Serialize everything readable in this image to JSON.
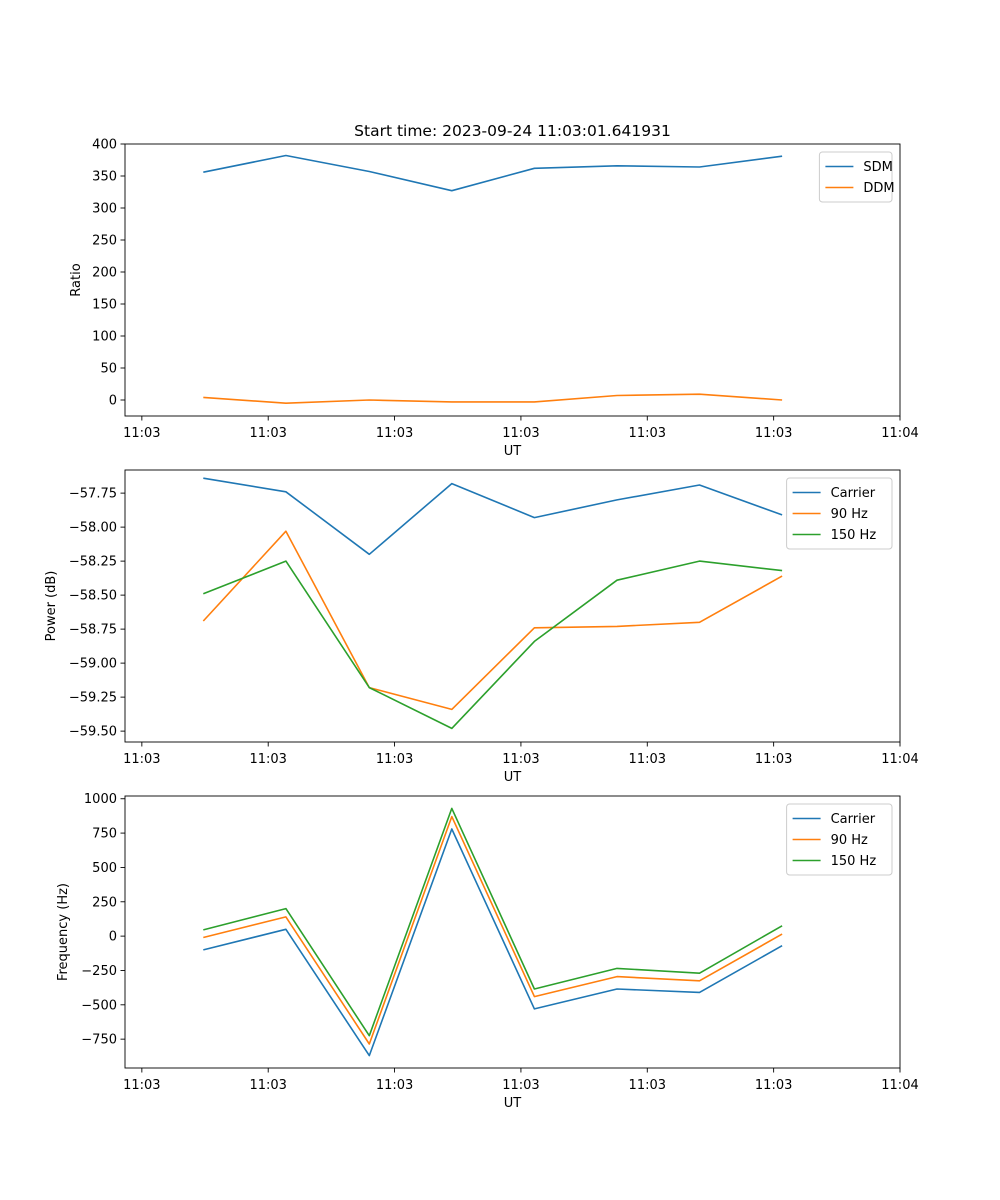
{
  "chart_data": [
    {
      "type": "line",
      "title": "Start time: 2023-09-24 11:03:01.641931",
      "xlabel": "UT",
      "ylabel": "Ratio",
      "xlim": [
        -0.2,
        9.0
      ],
      "xticks": [
        0,
        1.5,
        3,
        4.5,
        6,
        7.5,
        9
      ],
      "xtick_labels": [
        "11:03",
        "11:03",
        "11:03",
        "11:03",
        "11:03",
        "11:03",
        "11:04"
      ],
      "ylim": [
        -25,
        400
      ],
      "yticks": [
        0,
        50,
        100,
        150,
        200,
        250,
        300,
        350,
        400
      ],
      "ytick_labels": [
        "0",
        "50",
        "100",
        "150",
        "200",
        "250",
        "300",
        "350",
        "400"
      ],
      "legend_position": "top-right",
      "x": [
        0.73,
        1.71,
        2.7,
        3.68,
        4.66,
        5.64,
        6.62,
        7.6
      ],
      "series": [
        {
          "name": "SDM",
          "color": "#1f77b4",
          "values": [
            356,
            382,
            357,
            327,
            362,
            366,
            364,
            381
          ]
        },
        {
          "name": "DDM",
          "color": "#ff7f0e",
          "values": [
            4,
            -5,
            0,
            -3,
            -3,
            7,
            9,
            0
          ]
        }
      ]
    },
    {
      "type": "line",
      "title": "",
      "xlabel": "UT",
      "ylabel": "Power (dB)",
      "xlim": [
        -0.2,
        9.0
      ],
      "xticks": [
        0,
        1.5,
        3,
        4.5,
        6,
        7.5,
        9
      ],
      "xtick_labels": [
        "11:03",
        "11:03",
        "11:03",
        "11:03",
        "11:03",
        "11:03",
        "11:04"
      ],
      "ylim": [
        -59.58,
        -57.58
      ],
      "yticks": [
        -59.5,
        -59.25,
        -59.0,
        -58.75,
        -58.5,
        -58.25,
        -58.0,
        -57.75
      ],
      "ytick_labels": [
        "−59.50",
        "−59.25",
        "−59.00",
        "−58.75",
        "−58.50",
        "−58.25",
        "−58.00",
        "−57.75"
      ],
      "legend_position": "top-right",
      "x": [
        0.73,
        1.71,
        2.7,
        3.68,
        4.66,
        5.64,
        6.62,
        7.6
      ],
      "series": [
        {
          "name": "Carrier",
          "color": "#1f77b4",
          "values": [
            -57.64,
            -57.74,
            -58.2,
            -57.68,
            -57.93,
            -57.8,
            -57.69,
            -57.91
          ]
        },
        {
          "name": "90 Hz",
          "color": "#ff7f0e",
          "values": [
            -58.69,
            -58.03,
            -59.18,
            -59.34,
            -58.74,
            -58.73,
            -58.7,
            -58.36
          ]
        },
        {
          "name": "150 Hz",
          "color": "#2ca02c",
          "values": [
            -58.49,
            -58.25,
            -59.18,
            -59.48,
            -58.84,
            -58.39,
            -58.25,
            -58.32
          ]
        }
      ]
    },
    {
      "type": "line",
      "title": "",
      "xlabel": "UT",
      "ylabel": "Frequency (Hz)",
      "xlim": [
        -0.2,
        9.0
      ],
      "xticks": [
        0,
        1.5,
        3,
        4.5,
        6,
        7.5,
        9
      ],
      "xtick_labels": [
        "11:03",
        "11:03",
        "11:03",
        "11:03",
        "11:03",
        "11:03",
        "11:04"
      ],
      "ylim": [
        -960,
        1020
      ],
      "yticks": [
        -750,
        -500,
        -250,
        0,
        250,
        500,
        750,
        1000
      ],
      "ytick_labels": [
        "−750",
        "−500",
        "−250",
        "0",
        "250",
        "500",
        "750",
        "1000"
      ],
      "legend_position": "top-right",
      "x": [
        0.73,
        1.71,
        2.7,
        3.68,
        4.66,
        5.64,
        6.62,
        7.6
      ],
      "series": [
        {
          "name": "Carrier",
          "color": "#1f77b4",
          "values": [
            -100,
            50,
            -870,
            780,
            -530,
            -385,
            -410,
            -70
          ]
        },
        {
          "name": "90 Hz",
          "color": "#ff7f0e",
          "values": [
            -10,
            140,
            -785,
            870,
            -440,
            -295,
            -325,
            15
          ]
        },
        {
          "name": "150 Hz",
          "color": "#2ca02c",
          "values": [
            45,
            200,
            -725,
            930,
            -385,
            -235,
            -270,
            75
          ]
        }
      ]
    }
  ]
}
